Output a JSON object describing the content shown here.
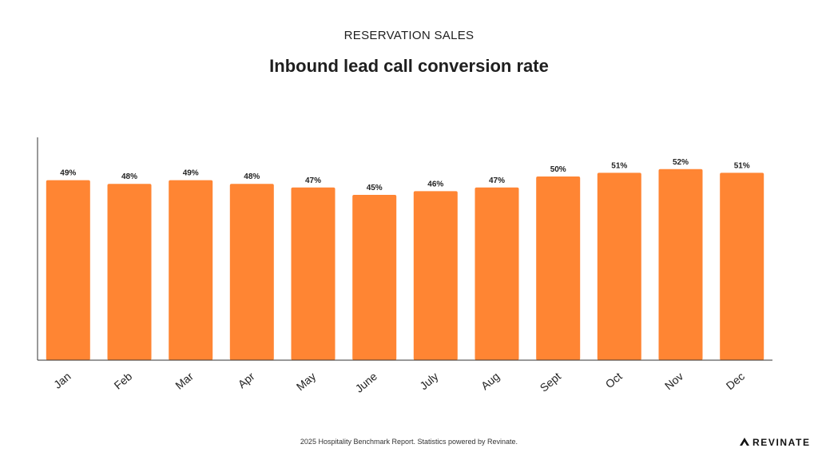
{
  "header": {
    "subtitle": "RESERVATION SALES",
    "title": "Inbound lead call conversion rate"
  },
  "chart_data": {
    "type": "bar",
    "categories": [
      "Jan",
      "Feb",
      "Mar",
      "Apr",
      "May",
      "June",
      "July",
      "Aug",
      "Sept",
      "Oct",
      "Nov",
      "Dec"
    ],
    "values": [
      49,
      48,
      49,
      48,
      47,
      45,
      46,
      47,
      50,
      51,
      52,
      51
    ],
    "value_labels": [
      "49%",
      "48%",
      "49%",
      "48%",
      "47%",
      "45%",
      "46%",
      "47%",
      "50%",
      "51%",
      "52%",
      "51%"
    ],
    "title": "Inbound lead call conversion rate",
    "xlabel": "",
    "ylabel": "",
    "ylim": [
      0,
      60
    ],
    "grid": false,
    "legend": "none",
    "bar_color": "#ff8533"
  },
  "footer": {
    "text": "2025 Hospitality Benchmark Report. Statistics powered by Revinate.",
    "brand": "REVINATE",
    "brand_icon": "revinate-logo-icon"
  }
}
